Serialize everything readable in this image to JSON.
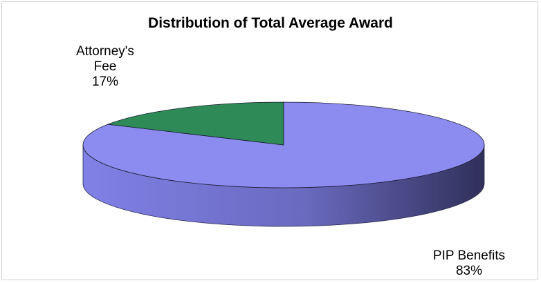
{
  "chart_data": {
    "type": "pie",
    "title": "Distribution of Total Average Award",
    "slices": [
      {
        "name": "Attorney's Fee",
        "label_lines": [
          "Attorney's",
          "Fee"
        ],
        "percent_label": "17%",
        "value": 17,
        "color": "#2e8b57",
        "side_color": "#1e6b40"
      },
      {
        "name": "PIP Benefits",
        "label_lines": [
          "PIP Benefits"
        ],
        "percent_label": "83%",
        "value": 83,
        "color": "#8c8cf0",
        "side_color": "#8080e6"
      }
    ],
    "style": "3d",
    "legend": "none"
  }
}
